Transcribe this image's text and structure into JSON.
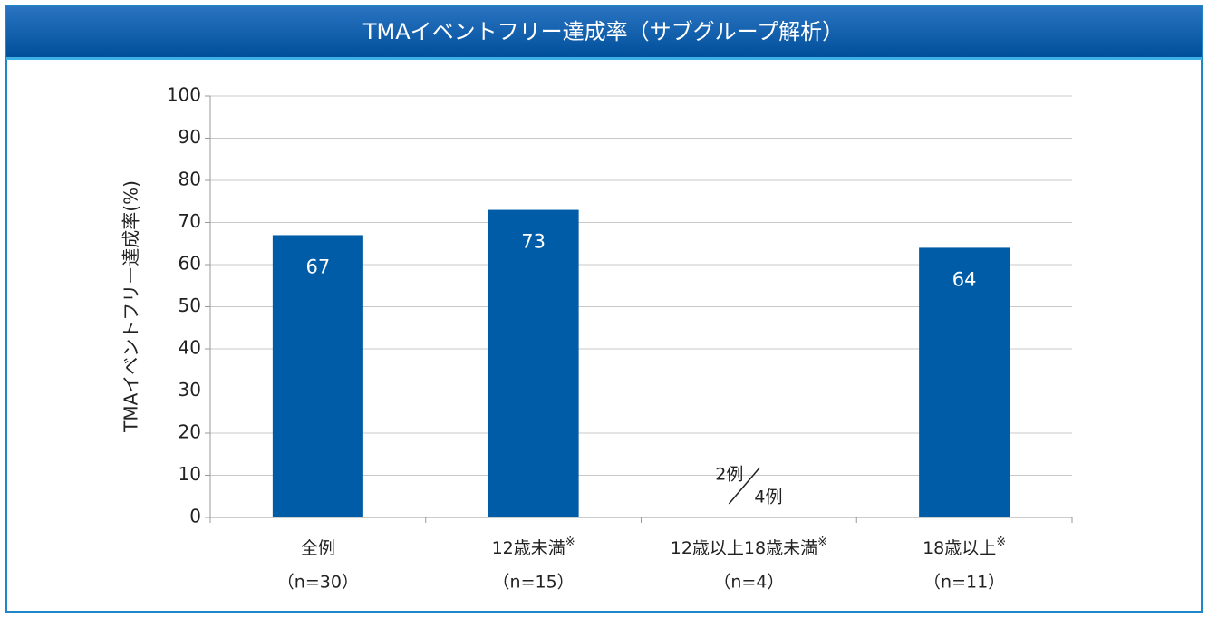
{
  "chart_data": {
    "type": "bar",
    "title": "TMAイベントフリー達成率（サブグループ解析）",
    "y_label": "TMAイベントフリー達成率(%)",
    "categories": [
      "全例",
      "12歳未満",
      "12歳以上18歳未満",
      "18歳以上"
    ],
    "footnote_marks": [
      null,
      "※",
      "※",
      "※"
    ],
    "category_notes": [
      "（n=30）",
      "（n=15）",
      "（n=4）",
      "（n=11）"
    ],
    "values": [
      67,
      73,
      null,
      64
    ],
    "color": "#005ca6",
    "ylim": [
      0,
      100
    ],
    "yticks": [
      0,
      10,
      20,
      30,
      40,
      50,
      60,
      70,
      80,
      90,
      100
    ],
    "grid": true,
    "annotation": {
      "numerator": "2例",
      "denominator": "4例"
    }
  }
}
